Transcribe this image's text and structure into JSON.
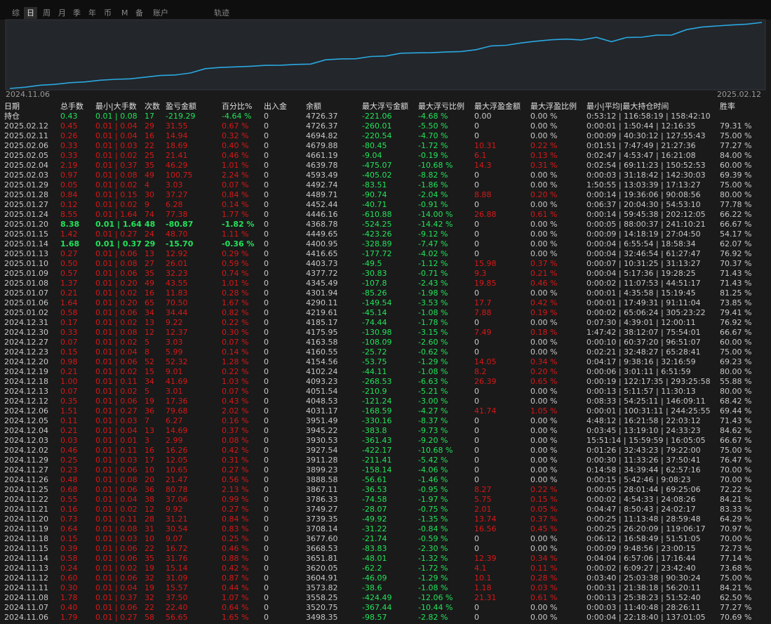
{
  "tabs": [
    "综",
    "日",
    "周",
    "月",
    "季",
    "年",
    "币",
    "M",
    "备",
    "账户"
  ],
  "tab_track": "轨迹",
  "table": {
    "columns": [
      "日期",
      "总手数",
      "最小|大手数",
      "次数",
      "盈亏金额",
      "百分比%",
      "出入金",
      "余额",
      "最大浮亏金额",
      "最大浮亏比例",
      "最大浮盈金额",
      "最大浮盈比例",
      "最小|平均|最大持仓时间",
      "胜率"
    ],
    "holding": [
      "持仓",
      "0.43",
      "0.01 | 0.08",
      "17",
      "-219.29",
      "-4.64 %",
      "0",
      "4726.37",
      "-221.06",
      "-4.68 %",
      "0.00",
      "0.00 %",
      "0:53:12 | 116:58:19 | 158:42:10"
    ],
    "rows": [
      [
        "2025.02.12",
        "0.45",
        "0.01 | 0.04",
        "29",
        "31.55",
        "0.67 %",
        "0",
        "4726.37",
        "-260.01",
        "-5.50 %",
        "0",
        "0.00 %",
        "0:00:01 | 1:50:44 | 12:16:35",
        "79.31 %"
      ],
      [
        "2025.02.11",
        "0.26",
        "0.01 | 0.04",
        "16",
        "14.94",
        "0.32 %",
        "0",
        "4694.82",
        "-220.54",
        "-4.70 %",
        "0",
        "0.00 %",
        "0:00:09 | 40:30:12 | 127:55:43",
        "75.00 %"
      ],
      [
        "2025.02.06",
        "0.33",
        "0.01 | 0.03",
        "22",
        "18.69",
        "0.40 %",
        "0",
        "4679.88",
        "-80.45",
        "-1.72 %",
        "10.31",
        "0.22 %",
        "0:01:51 | 7:47:49 | 21:27:36",
        "77.27 %"
      ],
      [
        "2025.02.05",
        "0.33",
        "0.01 | 0.02",
        "25",
        "21.41",
        "0.46 %",
        "0",
        "4661.19",
        "-9.04",
        "-0.19 %",
        "6.1",
        "0.13 %",
        "0:02:47 | 4:53:47 | 16:21:08",
        "84.00 %"
      ],
      [
        "2025.02.04",
        "2.19",
        "0.01 | 0.37",
        "35",
        "46.29",
        "1.01 %",
        "0",
        "4639.78",
        "-475.07",
        "-10.68 %",
        "14.3",
        "0.31 %",
        "0:02:54 | 69:11:23 | 150:52:53",
        "60.00 %"
      ],
      [
        "2025.02.03",
        "0.97",
        "0.01 | 0.08",
        "49",
        "100.75",
        "2.24 %",
        "0",
        "4593.49",
        "-405.02",
        "-8.82 %",
        "0",
        "0.00 %",
        "0:00:03 | 31:18:42 | 142:30:03",
        "69.39 %"
      ],
      [
        "2025.01.29",
        "0.05",
        "0.01 | 0.02",
        "4",
        "3.03",
        "0.07 %",
        "0",
        "4492.74",
        "-83.51",
        "-1.86 %",
        "0",
        "0.00 %",
        "1:50:55 | 13:03:39 | 17:13:27",
        "75.00 %"
      ],
      [
        "2025.01.28",
        "0.84",
        "0.01 | 0.15",
        "30",
        "37.27",
        "0.84 %",
        "0",
        "4489.71",
        "-90.74",
        "-2.04 %",
        "8.88",
        "0.20 %",
        "0:00:14 | 19:36:06 | 90:08:56",
        "80.00 %"
      ],
      [
        "2025.01.27",
        "0.12",
        "0.01 | 0.02",
        "9",
        "6.28",
        "0.14 %",
        "0",
        "4452.44",
        "-40.71",
        "-0.91 %",
        "0",
        "0.00 %",
        "0:06:37 | 20:04:30 | 54:53:10",
        "77.78 %"
      ],
      [
        "2025.01.24",
        "8.55",
        "0.01 | 1.64",
        "74",
        "77.38",
        "1.77 %",
        "0",
        "4446.16",
        "-610.88",
        "-14.00 %",
        "26.88",
        "0.61 %",
        "0:00:14 | 59:45:38 | 202:12:05",
        "66.22 %"
      ],
      [
        "2025.01.20",
        "8.38",
        "0.01 | 1.64",
        "48",
        "-80.87",
        "-1.82 %",
        "0",
        "4368.78",
        "-524.25",
        "-14.42 %",
        "0",
        "0.00 %",
        "0:00:05 | 88:00:37 | 241:10:21",
        "66.67 %"
      ],
      [
        "2025.01.15",
        "1.42",
        "0.01 | 0.27",
        "24",
        "48.70",
        "1.11 %",
        "0",
        "4449.65",
        "-423.26",
        "-9.12 %",
        "0",
        "0.00 %",
        "0:00:09 | 14:18:19 | 27:04:50",
        "54.17 %"
      ],
      [
        "2025.01.14",
        "1.68",
        "0.01 | 0.37",
        "29",
        "-15.70",
        "-0.36 %",
        "0",
        "4400.95",
        "-328.89",
        "-7.47 %",
        "0",
        "0.00 %",
        "0:00:04 | 6:55:54 | 18:58:34",
        "62.07 %"
      ],
      [
        "2025.01.13",
        "0.27",
        "0.01 | 0.06",
        "13",
        "12.92",
        "0.29 %",
        "0",
        "4416.65",
        "-177.72",
        "-4.02 %",
        "0",
        "0.00 %",
        "0:00:04 | 32:46:54 | 61:27:47",
        "76.92 %"
      ],
      [
        "2025.01.10",
        "0.50",
        "0.01 | 0.08",
        "27",
        "26.01",
        "0.59 %",
        "0",
        "4403.73",
        "-49.5",
        "-1.12 %",
        "15.98",
        "0.37 %",
        "0:00:07 | 10:31:25 | 31:13:27",
        "70.37 %"
      ],
      [
        "2025.01.09",
        "0.57",
        "0.01 | 0.06",
        "35",
        "32.23",
        "0.74 %",
        "0",
        "4377.72",
        "-30.83",
        "-0.71 %",
        "9.3",
        "0.21 %",
        "0:00:04 | 5:17:36 | 19:28:25",
        "71.43 %"
      ],
      [
        "2025.01.08",
        "1.37",
        "0.01 | 0.20",
        "49",
        "43.55",
        "1.01 %",
        "0",
        "4345.49",
        "-107.8",
        "-2.43 %",
        "19.85",
        "0.46 %",
        "0:00:02 | 11:07:53 | 44:51:17",
        "71.43 %"
      ],
      [
        "2025.01.07",
        "0.21",
        "0.01 | 0.02",
        "16",
        "11.83",
        "0.28 %",
        "0",
        "4301.94",
        "-85.26",
        "-1.98 %",
        "0",
        "0.00 %",
        "0:00:01 | 4:35:58 | 15:19:45",
        "81.25 %"
      ],
      [
        "2025.01.06",
        "1.64",
        "0.01 | 0.20",
        "65",
        "70.50",
        "1.67 %",
        "0",
        "4290.11",
        "-149.54",
        "-3.53 %",
        "17.7",
        "0.42 %",
        "0:00:01 | 17:49:31 | 91:11:04",
        "73.85 %"
      ],
      [
        "2025.01.02",
        "0.58",
        "0.01 | 0.06",
        "34",
        "34.44",
        "0.82 %",
        "0",
        "4219.61",
        "-45.14",
        "-1.08 %",
        "7.88",
        "0.19 %",
        "0:00:02 | 65:06:24 | 305:23:22",
        "79.41 %"
      ],
      [
        "2024.12.31",
        "0.17",
        "0.01 | 0.02",
        "13",
        "9.22",
        "0.22 %",
        "0",
        "4185.17",
        "-74.44",
        "-1.78 %",
        "0",
        "0.00 %",
        "0:07:30 | 4:39:01 | 12:00:11",
        "76.92 %"
      ],
      [
        "2024.12.30",
        "0.33",
        "0.01 | 0.08",
        "12",
        "12.37",
        "0.30 %",
        "0",
        "4175.95",
        "-130.98",
        "-3.15 %",
        "7.49",
        "0.18 %",
        "1:47:42 | 38:12:07 | 75:54:01",
        "66.67 %"
      ],
      [
        "2024.12.27",
        "0.07",
        "0.01 | 0.02",
        "5",
        "3.03",
        "0.07 %",
        "0",
        "4163.58",
        "-108.09",
        "-2.60 %",
        "0",
        "0.00 %",
        "0:00:10 | 60:37:20 | 96:51:07",
        "60.00 %"
      ],
      [
        "2024.12.23",
        "0.15",
        "0.01 | 0.04",
        "8",
        "5.99",
        "0.14 %",
        "0",
        "4160.55",
        "-25.72",
        "-0.62 %",
        "0",
        "0.00 %",
        "0:02:21 | 32:48:27 | 65:28:41",
        "75.00 %"
      ],
      [
        "2024.12.20",
        "0.98",
        "0.01 | 0.06",
        "52",
        "52.32",
        "1.28 %",
        "0",
        "4154.56",
        "-53.75",
        "-1.29 %",
        "14.05",
        "0.34 %",
        "0:04:17 | 9:38:16 | 32:16:59",
        "69.23 %"
      ],
      [
        "2024.12.19",
        "0.21",
        "0.01 | 0.02",
        "15",
        "9.01",
        "0.22 %",
        "0",
        "4102.24",
        "-44.11",
        "-1.08 %",
        "8.2",
        "0.20 %",
        "0:00:06 | 3:01:11 | 6:51:59",
        "80.00 %"
      ],
      [
        "2024.12.18",
        "1.00",
        "0.01 | 0.11",
        "34",
        "41.69",
        "1.03 %",
        "0",
        "4093.23",
        "-268.53",
        "-6.63 %",
        "26.39",
        "0.65 %",
        "0:00:19 | 122:17:35 | 293:25:58",
        "55.88 %"
      ],
      [
        "2024.12.13",
        "0.07",
        "0.01 | 0.02",
        "5",
        "3.01",
        "0.07 %",
        "0",
        "4051.54",
        "-210.9",
        "-5.21 %",
        "0",
        "0.00 %",
        "0:00:13 | 5:11:57 | 11:30:13",
        "80.00 %"
      ],
      [
        "2024.12.12",
        "0.35",
        "0.01 | 0.06",
        "19",
        "17.36",
        "0.43 %",
        "0",
        "4048.53",
        "-121.24",
        "-3.00 %",
        "0",
        "0.00 %",
        "0:08:33 | 54:25:11 | 146:09:11",
        "68.42 %"
      ],
      [
        "2024.12.06",
        "1.51",
        "0.01 | 0.27",
        "36",
        "79.68",
        "2.02 %",
        "0",
        "4031.17",
        "-168.59",
        "-4.27 %",
        "41.74",
        "1.05 %",
        "0:00:01 | 100:31:11 | 244:25:55",
        "69.44 %"
      ],
      [
        "2024.12.05",
        "0.11",
        "0.01 | 0.03",
        "7",
        "6.27",
        "0.16 %",
        "0",
        "3951.49",
        "-330.16",
        "-8.37 %",
        "0",
        "0.00 %",
        "4:48:12 | 16:21:58 | 22:03:12",
        "71.43 %"
      ],
      [
        "2024.12.04",
        "0.21",
        "0.01 | 0.04",
        "13",
        "14.69",
        "0.37 %",
        "0",
        "3945.22",
        "-383.8",
        "-9.73 %",
        "0",
        "0.00 %",
        "0:03:45 | 13:19:10 | 24:33:23",
        "84.62 %"
      ],
      [
        "2024.12.03",
        "0.03",
        "0.01 | 0.01",
        "3",
        "2.99",
        "0.08 %",
        "0",
        "3930.53",
        "-361.43",
        "-9.20 %",
        "0",
        "0.00 %",
        "15:51:14 | 15:59:59 | 16:05:05",
        "66.67 %"
      ],
      [
        "2024.12.02",
        "0.46",
        "0.01 | 0.11",
        "16",
        "16.26",
        "0.42 %",
        "0",
        "3927.54",
        "-422.17",
        "-10.68 %",
        "0",
        "0.00 %",
        "0:01:26 | 32:43:23 | 79:22:00",
        "75.00 %"
      ],
      [
        "2024.11.29",
        "0.25",
        "0.01 | 0.03",
        "17",
        "12.05",
        "0.31 %",
        "0",
        "3911.28",
        "-211.41",
        "-5.42 %",
        "0",
        "0.00 %",
        "0:00:30 | 11:33:26 | 37:50:41",
        "76.47 %"
      ],
      [
        "2024.11.27",
        "0.23",
        "0.01 | 0.06",
        "10",
        "10.65",
        "0.27 %",
        "0",
        "3899.23",
        "-158.14",
        "-4.06 %",
        "0",
        "0.00 %",
        "0:14:58 | 34:39:44 | 62:57:16",
        "70.00 %"
      ],
      [
        "2024.11.26",
        "0.48",
        "0.01 | 0.08",
        "20",
        "21.47",
        "0.56 %",
        "0",
        "3888.58",
        "-56.61",
        "-1.46 %",
        "0",
        "0.00 %",
        "0:00:15 | 5:42:46 | 9:08:23",
        "70.00 %"
      ],
      [
        "2024.11.25",
        "0.68",
        "0.01 | 0.06",
        "36",
        "80.78",
        "2.13 %",
        "0",
        "3867.11",
        "-36.53",
        "-0.95 %",
        "8.27",
        "0.22 %",
        "0:00:05 | 28:01:44 | 69:25:06",
        "72.22 %"
      ],
      [
        "2024.11.22",
        "0.55",
        "0.01 | 0.04",
        "38",
        "37.06",
        "0.99 %",
        "0",
        "3786.33",
        "-74.58",
        "-1.97 %",
        "5.75",
        "0.15 %",
        "0:00:02 | 4:54:33 | 24:08:26",
        "84.21 %"
      ],
      [
        "2024.11.21",
        "0.16",
        "0.01 | 0.02",
        "12",
        "9.92",
        "0.27 %",
        "0",
        "3749.27",
        "-28.07",
        "-0.75 %",
        "2.01",
        "0.05 %",
        "0:04:47 | 8:50:43 | 24:02:17",
        "83.33 %"
      ],
      [
        "2024.11.20",
        "0.73",
        "0.01 | 0.11",
        "28",
        "31.21",
        "0.84 %",
        "0",
        "3739.35",
        "-49.92",
        "-1.35 %",
        "13.74",
        "0.37 %",
        "0:00:25 | 11:13:48 | 28:59:48",
        "64.29 %"
      ],
      [
        "2024.11.19",
        "0.64",
        "0.01 | 0.08",
        "31",
        "30.54",
        "0.83 %",
        "0",
        "3708.14",
        "-31.22",
        "-0.84 %",
        "16.56",
        "0.45 %",
        "0:00:25 | 26:20:09 | 119:06:17",
        "70.97 %"
      ],
      [
        "2024.11.18",
        "0.15",
        "0.01 | 0.03",
        "10",
        "9.07",
        "0.25 %",
        "0",
        "3677.60",
        "-21.74",
        "-0.59 %",
        "0",
        "0.00 %",
        "0:06:12 | 16:58:49 | 51:51:05",
        "70.00 %"
      ],
      [
        "2024.11.15",
        "0.39",
        "0.01 | 0.06",
        "22",
        "16.72",
        "0.46 %",
        "0",
        "3668.53",
        "-83.83",
        "-2.30 %",
        "0",
        "0.00 %",
        "0:00:09 | 9:48:56 | 23:00:15",
        "72.73 %"
      ],
      [
        "2024.11.14",
        "0.58",
        "0.01 | 0.06",
        "35",
        "31.76",
        "0.88 %",
        "0",
        "3651.81",
        "-48.01",
        "-1.32 %",
        "12.39",
        "0.34 %",
        "0:04:04 | 6:57:06 | 17:16:44",
        "77.14 %"
      ],
      [
        "2024.11.13",
        "0.24",
        "0.01 | 0.02",
        "19",
        "15.14",
        "0.42 %",
        "0",
        "3620.05",
        "-62.2",
        "-1.72 %",
        "4.1",
        "0.11 %",
        "0:00:02 | 6:09:27 | 23:42:40",
        "73.68 %"
      ],
      [
        "2024.11.12",
        "0.60",
        "0.01 | 0.06",
        "32",
        "31.09",
        "0.87 %",
        "0",
        "3604.91",
        "-46.09",
        "-1.29 %",
        "10.1",
        "0.28 %",
        "0:03:40 | 25:03:38 | 90:30:24",
        "75.00 %"
      ],
      [
        "2024.11.11",
        "0.30",
        "0.01 | 0.04",
        "19",
        "15.57",
        "0.44 %",
        "0",
        "3573.82",
        "-38.6",
        "-1.08 %",
        "1.18",
        "0.03 %",
        "0:00:31 | 21:38:18 | 56:20:11",
        "84.21 %"
      ],
      [
        "2024.11.08",
        "1.78",
        "0.01 | 0.37",
        "32",
        "37.50",
        "1.07 %",
        "0",
        "3558.25",
        "-424.49",
        "-12.06 %",
        "21.31",
        "0.61 %",
        "0:00:13 | 25:38:23 | 51:52:40",
        "62.50 %"
      ],
      [
        "2024.11.07",
        "0.40",
        "0.01 | 0.06",
        "22",
        "22.40",
        "0.64 %",
        "0",
        "3520.75",
        "-367.44",
        "-10.44 %",
        "0",
        "0.00 %",
        "0:00:03 | 11:40:48 | 28:26:11",
        "77.27 %"
      ],
      [
        "2024.11.06",
        "1.79",
        "0.01 | 0.27",
        "58",
        "56.65",
        "1.65 %",
        "0",
        "3498.35",
        "-98.57",
        "-2.82 %",
        "0",
        "0.00 %",
        "0:00:04 | 22:18:40 | 137:01:05",
        "70.69 %"
      ]
    ]
  }
}
